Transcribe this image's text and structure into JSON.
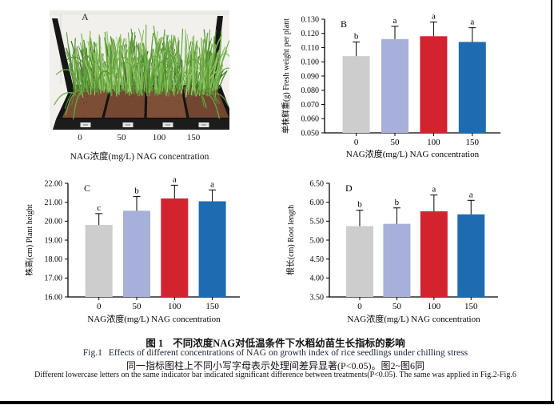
{
  "figure": {
    "panel_a": {
      "letter": "A",
      "x_tick_labels": [
        "0",
        "50",
        "100",
        "150"
      ],
      "x_axis_title": "NAG浓度(mg/L) NAG concentration"
    },
    "caption": {
      "title_zh_prefix": "图 1",
      "title_zh": "不同浓度NAG对低温条件下水稻幼苗生长指标的影响",
      "title_en_prefix": "Fig.1",
      "title_en": "Effects of different concentrations of NAG on growth index of rice seedlings under chilling stress",
      "note_zh": "同一指标图柱上不同小写字母表示处理间差异显著(P<0.05)。图2~图6同",
      "note_en": "Different lowercase letters on the same indicator bar indicated significant difference between treatments(P<0.05). The same was applied in Fig.2-Fig.6"
    }
  },
  "chart_data": [
    {
      "panel_letter": "B",
      "type": "bar",
      "categories": [
        "0",
        "50",
        "100",
        "150"
      ],
      "values": [
        0.104,
        0.116,
        0.118,
        0.114
      ],
      "error_upper": [
        0.01,
        0.009,
        0.01,
        0.01
      ],
      "sig_letters": [
        "b",
        "a",
        "a",
        "a"
      ],
      "ylabel": "单株鲜重(g) Fresh weight per plant",
      "xlabel": "NAG浓度(mg/L) NAG concentration",
      "ylim": [
        0.05,
        0.13
      ],
      "ystep": 0.01,
      "decimals": 3
    },
    {
      "panel_letter": "C",
      "type": "bar",
      "categories": [
        "0",
        "50",
        "100",
        "150"
      ],
      "values": [
        19.8,
        20.55,
        21.2,
        21.05
      ],
      "error_upper": [
        0.6,
        0.75,
        0.7,
        0.6
      ],
      "sig_letters": [
        "c",
        "b",
        "a",
        "a"
      ],
      "ylabel": "株高(cm) Plant height",
      "xlabel": "NAG浓度(mg/L) NAG concentration",
      "ylim": [
        16.0,
        22.0
      ],
      "ystep": 1.0,
      "decimals": 2
    },
    {
      "panel_letter": "D",
      "type": "bar",
      "categories": [
        "0",
        "50",
        "100",
        "150"
      ],
      "values": [
        5.37,
        5.43,
        5.76,
        5.68
      ],
      "error_upper": [
        0.42,
        0.42,
        0.43,
        0.37
      ],
      "sig_letters": [
        "b",
        "b",
        "a",
        "a"
      ],
      "ylabel": "根长(cm) Root length",
      "xlabel": "NAG浓度(mg/L) NAG concentration",
      "ylim": [
        3.5,
        6.5
      ],
      "ystep": 0.5,
      "decimals": 2
    }
  ],
  "colors": {
    "bars": [
      "#cdcdcd",
      "#a6b0d8",
      "#d2232e",
      "#1f6bb1"
    ],
    "axis": "#000000"
  }
}
